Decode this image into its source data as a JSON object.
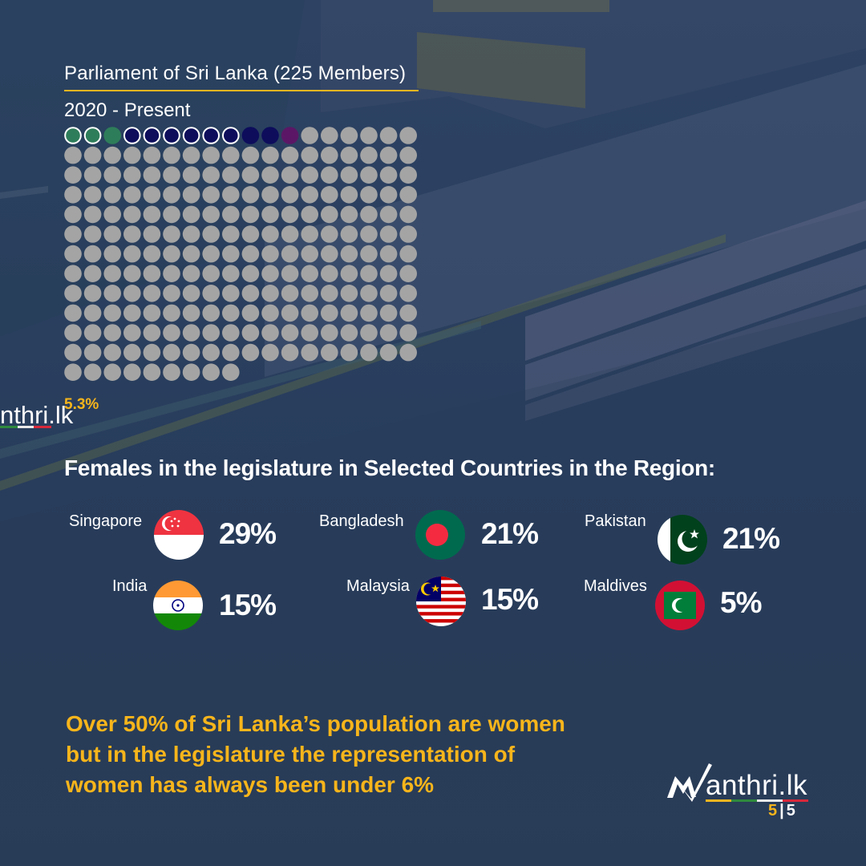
{
  "chart_data": [
    {
      "type": "waffle",
      "title": "Parliament of Sri Lanka (225 Members)",
      "subtitle": "2020 - Present",
      "total_seats": 225,
      "columns": 18,
      "female_seats": [
        {
          "color": "#2e7d5a",
          "style": "outlined",
          "count": 2
        },
        {
          "color": "#2e7d5a",
          "style": "filled",
          "count": 1
        },
        {
          "color": "#0d0d5c",
          "style": "outlined",
          "count": 6
        },
        {
          "color": "#0d0d5c",
          "style": "filled",
          "count": 2
        },
        {
          "color": "#5b1766",
          "style": "filled",
          "count": 1
        }
      ],
      "other_seat_color": "#a4a4a4",
      "percentage_label": "5.3%"
    },
    {
      "type": "table",
      "title": "Females in the legislature in Selected Countries in the Region:",
      "rows": [
        {
          "country": "Singapore",
          "value": 29,
          "label": "29%",
          "flag": "singapore-flag"
        },
        {
          "country": "Bangladesh",
          "value": 21,
          "label": "21%",
          "flag": "bangladesh-flag"
        },
        {
          "country": "Pakistan",
          "value": 21,
          "label": "21%",
          "flag": "pakistan-flag"
        },
        {
          "country": "India",
          "value": 15,
          "label": "15%",
          "flag": "india-flag"
        },
        {
          "country": "Malaysia",
          "value": 15,
          "label": "15%",
          "flag": "malaysia-flag"
        },
        {
          "country": "Maldives",
          "value": 5,
          "label": "5%",
          "flag": "maldives-flag"
        }
      ]
    }
  ],
  "footnote": {
    "lines": [
      "Over 50% of Sri Lanka’s population are women",
      "but in the legislature the representation of",
      "women has always been under 6%"
    ]
  },
  "branding": {
    "logo_text": "anthri.lk",
    "left_logo_text": "nthri.lk",
    "page_current": "5",
    "page_total": "5"
  },
  "colors": {
    "background": "#2b3f5c",
    "accent": "#f7b51b"
  }
}
